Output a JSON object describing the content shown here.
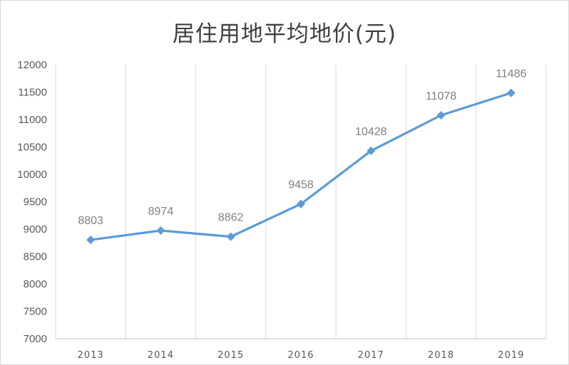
{
  "chart_data": {
    "type": "line",
    "title": "居住用地平均地价(元)",
    "xlabel": "",
    "ylabel": "",
    "categories": [
      "2013",
      "2014",
      "2015",
      "2016",
      "2017",
      "2018",
      "2019"
    ],
    "series": [
      {
        "values": [
          8803,
          8974,
          8862,
          9458,
          10428,
          11078,
          11486
        ]
      }
    ],
    "ylim": [
      7000,
      12000
    ],
    "yticks": [
      7000,
      7500,
      8000,
      8500,
      9000,
      9500,
      10000,
      10500,
      11000,
      11500,
      12000
    ],
    "data_labels": true,
    "grid": "vertical",
    "line_color": "#5b9bd5",
    "legend": "none"
  }
}
